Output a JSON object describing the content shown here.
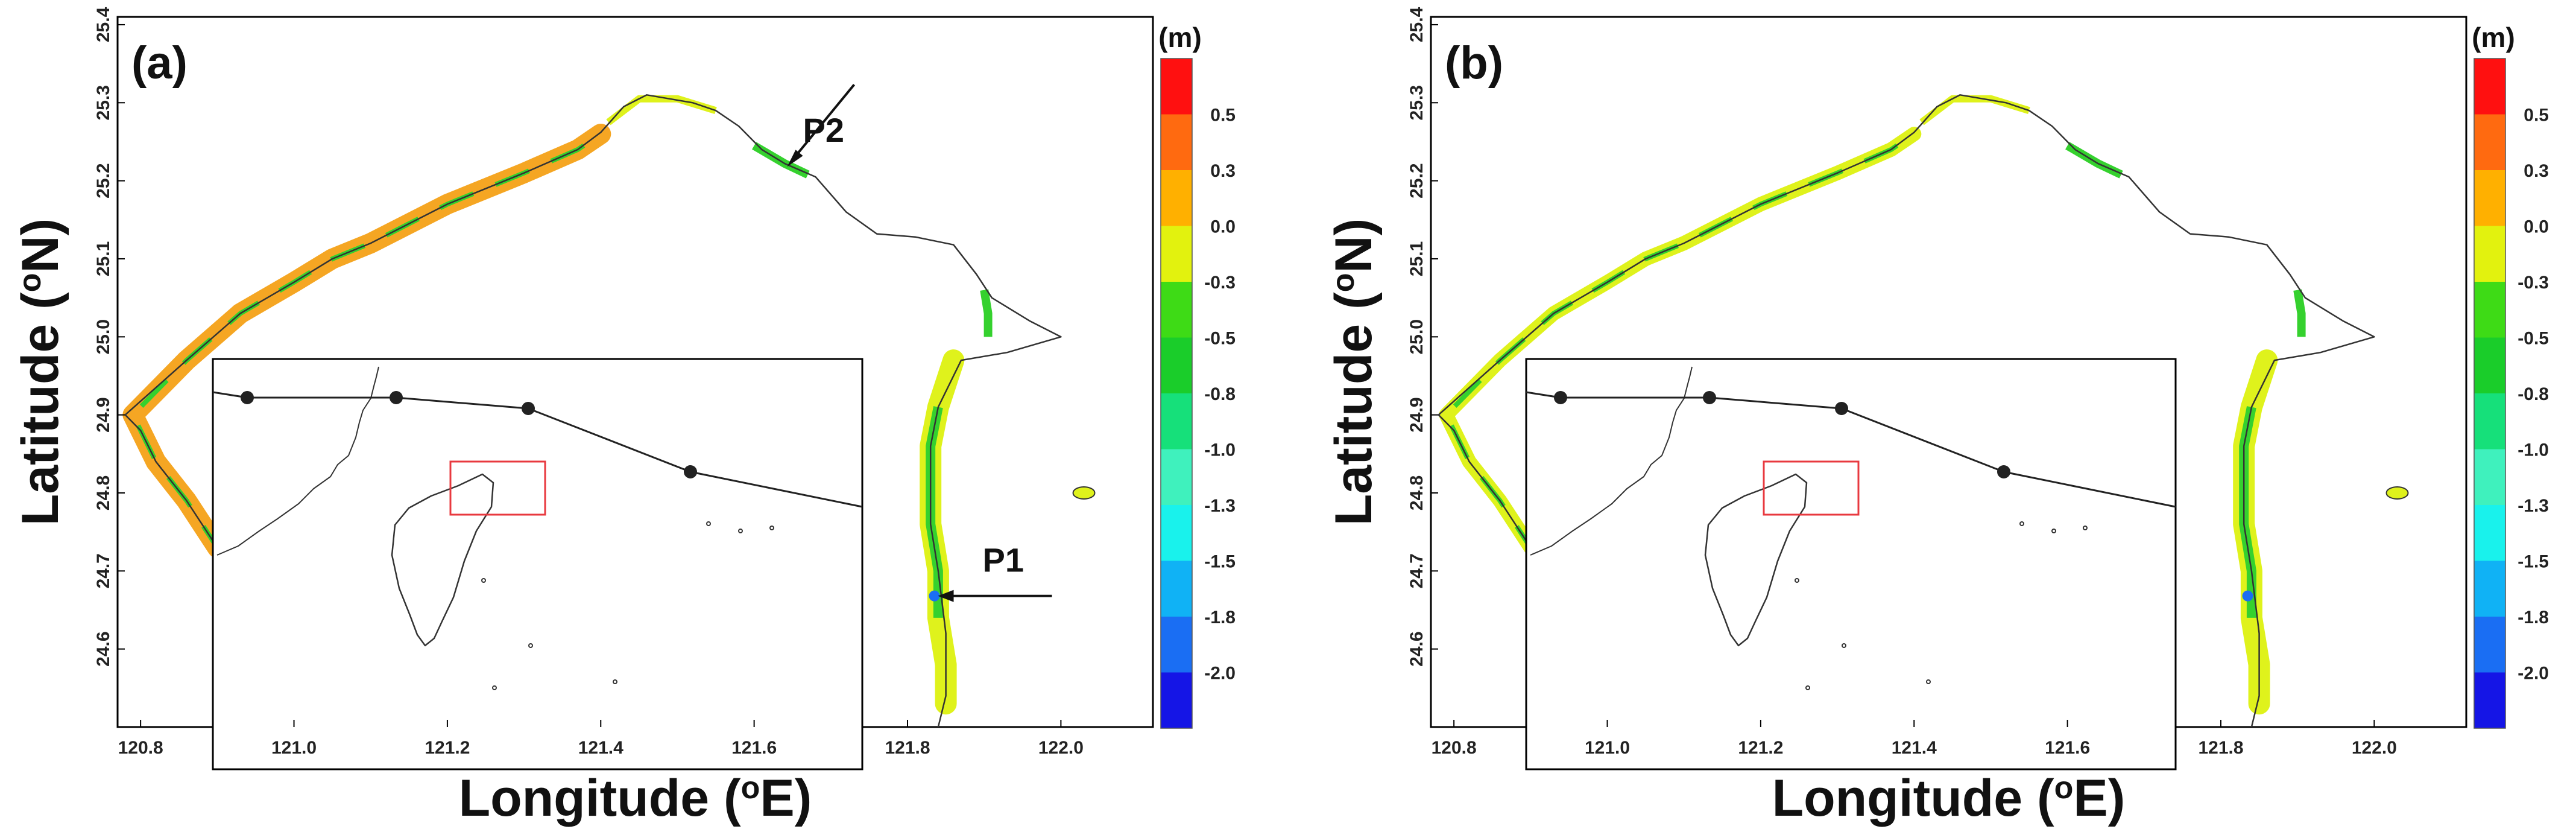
{
  "colors": {
    "coast": "#333333",
    "frame": "#000000",
    "track": "#222222",
    "locator_box": "#e8393f",
    "fill_orange": "#f5a623",
    "fill_yellow": "#dff21c",
    "fill_green": "#35d12e"
  },
  "axes": {
    "x_ticks": [
      "120.8",
      "121.0",
      "121.2",
      "121.4",
      "121.6",
      "121.8",
      "122.0"
    ],
    "y_ticks": [
      "24.6",
      "24.7",
      "24.8",
      "24.9",
      "25.0",
      "25.1",
      "25.2",
      "25.3",
      "25.4"
    ],
    "xlabel_pre": "Longitude (",
    "xlabel_sup": "o",
    "xlabel_post": "E)",
    "ylabel_pre": "Latitude (",
    "ylabel_sup": "o",
    "ylabel_post": "N)"
  },
  "colorbar": {
    "unit": "(m)",
    "labels": [
      "0.5",
      "0.3",
      "0.0",
      "-0.3",
      "-0.5",
      "-0.8",
      "-1.0",
      "-1.3",
      "-1.5",
      "-1.8",
      "-2.0"
    ],
    "colors": [
      "#ff1010",
      "#ff6a10",
      "#ffb000",
      "#e2f20e",
      "#3edb16",
      "#1acd2a",
      "#16e07a",
      "#3ff1bd",
      "#19f2ec",
      "#10b2f5",
      "#1a6ef3",
      "#1515e6"
    ]
  },
  "panels": [
    {
      "label": "(a)",
      "points": [
        {
          "name": "P2",
          "lon": 121.64,
          "lat": 25.215
        },
        {
          "name": "P1",
          "lon": 121.835,
          "lat": 24.668
        }
      ]
    },
    {
      "label": "(b)",
      "points": []
    }
  ]
}
